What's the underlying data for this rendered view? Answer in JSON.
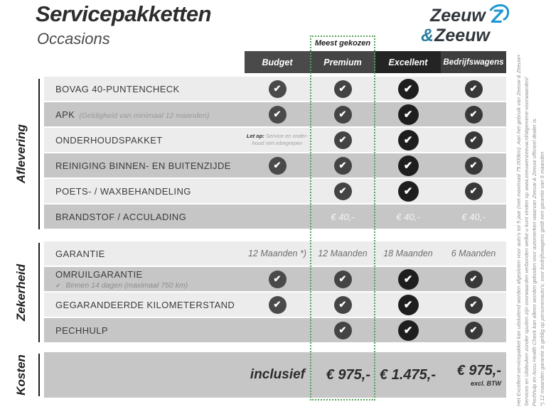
{
  "header": {
    "title": "Servicepakketten",
    "subtitle": "Occasions"
  },
  "logo": {
    "top": "Zeeuw",
    "amp": "&",
    "bottom": "Zeeuw"
  },
  "badge": {
    "label": "Meest gekozen"
  },
  "columns": [
    {
      "id": "budget",
      "label": "Budget"
    },
    {
      "id": "premium",
      "label": "Premium",
      "highlighted": true
    },
    {
      "id": "excellent",
      "label": "Excellent"
    },
    {
      "id": "bedrijfswagens",
      "label": "Bedrijfswagens"
    }
  ],
  "icons": {
    "check": "✔",
    "tick": "✓"
  },
  "colors": {
    "accent_green": "#55a15b",
    "row_light": "#ececec",
    "row_dark": "#c6c6c6",
    "header_gray": "#4a4a4a",
    "header_excellent": "#242424",
    "brand_blue": "#1d96d2",
    "brand_teal": "#2a7fa0",
    "brand_dark": "#30363c"
  },
  "sections": [
    {
      "label": "Aflevering",
      "rows": [
        {
          "label": "BOVAG 40-PUNTENCHECK",
          "cells": [
            {
              "type": "check"
            },
            {
              "type": "check"
            },
            {
              "type": "check"
            },
            {
              "type": "check"
            }
          ]
        },
        {
          "label": "APK",
          "note_inline": "(Geldigheid van minimaal 12 maanden)",
          "cells": [
            {
              "type": "check"
            },
            {
              "type": "check"
            },
            {
              "type": "check"
            },
            {
              "type": "check"
            }
          ]
        },
        {
          "label": "ONDERHOUDSPAKKET",
          "cells": [
            {
              "type": "note",
              "bold": "Let op:",
              "line1": "Service en onder-",
              "line2": "houd niet inbegrepen"
            },
            {
              "type": "check"
            },
            {
              "type": "check"
            },
            {
              "type": "check"
            }
          ]
        },
        {
          "label": "REINIGING BINNEN- EN BUITENZIJDE",
          "cells": [
            {
              "type": "check"
            },
            {
              "type": "check"
            },
            {
              "type": "check"
            },
            {
              "type": "check"
            }
          ]
        },
        {
          "label": "POETS- / WAXBEHANDELING",
          "cells": [
            {
              "type": "empty"
            },
            {
              "type": "check"
            },
            {
              "type": "check"
            },
            {
              "type": "check"
            }
          ]
        },
        {
          "label": "BRANDSTOF / ACCULADING",
          "cells": [
            {
              "type": "empty"
            },
            {
              "type": "euro",
              "value": "€ 40,-"
            },
            {
              "type": "euro",
              "value": "€ 40,-"
            },
            {
              "type": "euro",
              "value": "€ 40,-"
            }
          ]
        }
      ]
    },
    {
      "label": "Zekerheid",
      "rows": [
        {
          "label": "GARANTIE",
          "cells": [
            {
              "type": "value",
              "value": "12 Maanden *)"
            },
            {
              "type": "value",
              "value": "12 Maanden"
            },
            {
              "type": "value",
              "value": "18 Maanden"
            },
            {
              "type": "value",
              "value": "6 Maanden"
            }
          ]
        },
        {
          "label": "OMRUILGARANTIE",
          "note_below": "Binnen 14 dagen (maximaal 750 km)",
          "cells": [
            {
              "type": "check"
            },
            {
              "type": "check"
            },
            {
              "type": "check"
            },
            {
              "type": "check"
            }
          ]
        },
        {
          "label": "GEGARANDEERDE KILOMETERSTAND",
          "cells": [
            {
              "type": "check"
            },
            {
              "type": "check"
            },
            {
              "type": "check"
            },
            {
              "type": "check"
            }
          ]
        },
        {
          "label": "PECHHULP",
          "cells": [
            {
              "type": "empty"
            },
            {
              "type": "check"
            },
            {
              "type": "check"
            },
            {
              "type": "check"
            }
          ]
        }
      ]
    },
    {
      "label": "Kosten",
      "price_row": {
        "cells": [
          {
            "value": "inclusief"
          },
          {
            "value": "€ 975,-"
          },
          {
            "value": "€ 1.475,-"
          },
          {
            "value": "€ 975,-",
            "sub": "excl. BTW"
          }
        ]
      }
    }
  ],
  "footnotes": [
    "Het Excellent-servicepakket kan uitsluitend worden afgesloten voor auto's tot 5 jaar (met maximaal 75.000km). Aan het gebruik van Zeeuw & Zeeuw+",
    "Services en Uitdeuken zonder spuiten zijn voorwaarden verbonden welke u kunt vinden op www.zeeuwenzeeuw.nl/algemene-voorwaarden/",
    "Pechhulp en Accu Health Check kan alleen worden geboden voor automerken waarvan Zeeuw & Zeeuw officieel dealer is.",
    "*) 12 maanden garantie is geldig op personenauto's; voor bedrijfswagens geldt een garantie van 6 maanden"
  ]
}
